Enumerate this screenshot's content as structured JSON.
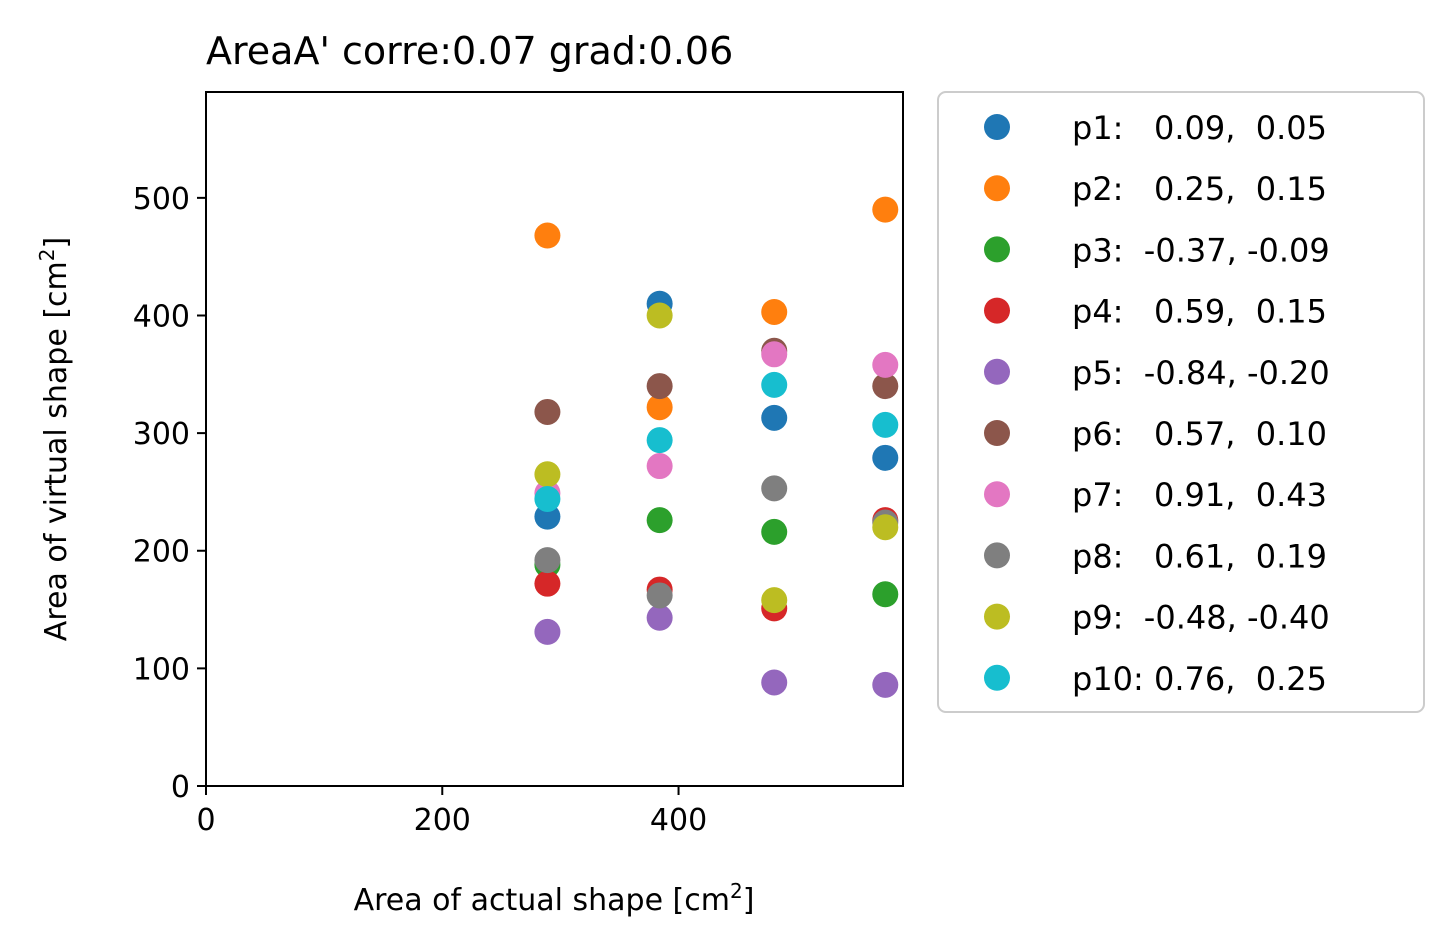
{
  "chart_data": {
    "type": "scatter",
    "title": "AreaA' corre:0.07 grad:0.06",
    "xlabel": "Area of actual shape [cm",
    "ylabel": "Area of virtual shape [cm",
    "label_unit_superscript": "2",
    "label_unit_close": "]",
    "xlim": [
      0,
      590
    ],
    "ylim": [
      0,
      590
    ],
    "xticks": [
      0,
      200,
      400
    ],
    "yticks": [
      0,
      100,
      200,
      300,
      400,
      500
    ],
    "x": [
      289,
      384,
      481,
      575
    ],
    "grid": false,
    "legend_position": "outside-right",
    "series": [
      {
        "name": "p1:   0.09,  0.05",
        "color": "#1f77b4",
        "values": [
          229,
          410,
          313,
          279
        ]
      },
      {
        "name": "p2:   0.25,  0.15",
        "color": "#ff7f0e",
        "values": [
          468,
          322,
          403,
          490
        ]
      },
      {
        "name": "p3:  -0.37, -0.09",
        "color": "#2ca02c",
        "values": [
          188,
          226,
          216,
          163
        ]
      },
      {
        "name": "p4:   0.59,  0.15",
        "color": "#d62728",
        "values": [
          172,
          167,
          151,
          226
        ]
      },
      {
        "name": "p5:  -0.84, -0.20",
        "color": "#9467bd",
        "values": [
          131,
          143,
          88,
          86
        ]
      },
      {
        "name": "p6:   0.57,  0.10",
        "color": "#8c564b",
        "values": [
          318,
          340,
          370,
          340
        ]
      },
      {
        "name": "p7:   0.91,  0.43",
        "color": "#e377c2",
        "values": [
          249,
          272,
          367,
          358
        ]
      },
      {
        "name": "p8:   0.61,  0.19",
        "color": "#7f7f7f",
        "values": [
          192,
          162,
          253,
          224
        ]
      },
      {
        "name": "p9:  -0.48, -0.40",
        "color": "#bcbd22",
        "values": [
          265,
          400,
          158,
          220
        ]
      },
      {
        "name": "p10: 0.76,  0.25",
        "color": "#17becf",
        "values": [
          244,
          294,
          341,
          307
        ]
      }
    ]
  }
}
